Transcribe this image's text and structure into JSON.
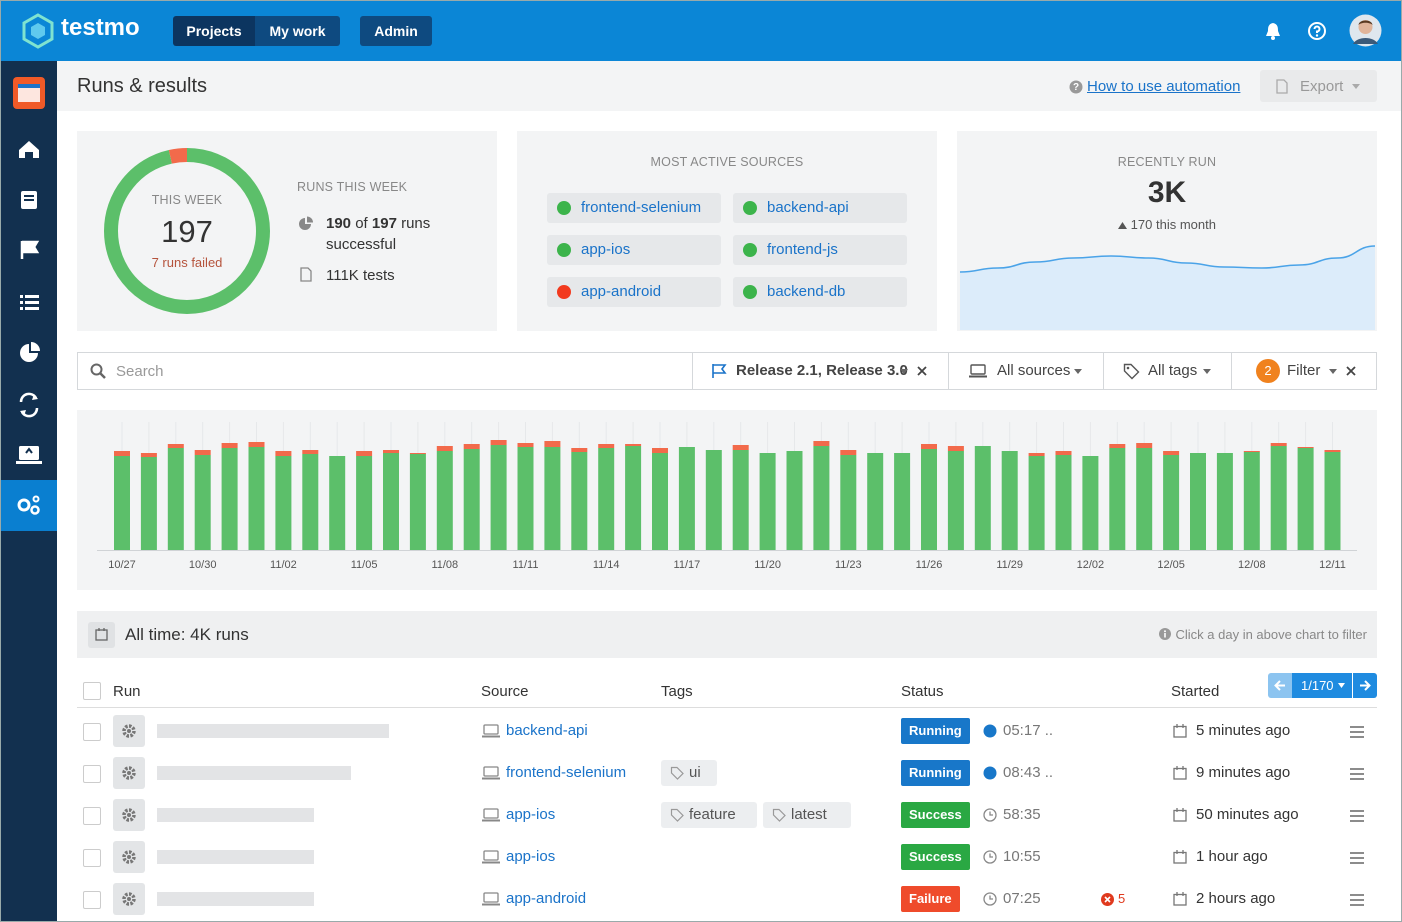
{
  "header": {
    "logo": "testmo",
    "nav": [
      "Projects",
      "My work",
      "Admin"
    ]
  },
  "page": {
    "title": "Runs & results",
    "help_link": "How to use automation",
    "export": "Export"
  },
  "summary": {
    "week_label": "THIS WEEK",
    "total": 197,
    "failed_label": "7 runs failed",
    "heading": "RUNS THIS WEEK",
    "of": "of",
    "runs_successful": "runs successful",
    "tests": "111K tests",
    "segments": [
      {
        "color": "#5cbf6a",
        "value": 190
      },
      {
        "color": "#f26a4b",
        "value": 7
      }
    ]
  },
  "sources": {
    "title": "MOST ACTIVE SOURCES",
    "items": [
      {
        "name": "frontend-selenium",
        "color": "#3cb44b"
      },
      {
        "name": "backend-api",
        "color": "#3cb44b"
      },
      {
        "name": "app-ios",
        "color": "#3cb44b"
      },
      {
        "name": "frontend-js",
        "color": "#3cb44b"
      },
      {
        "name": "app-android",
        "color": "#f23a1e"
      },
      {
        "name": "backend-db",
        "color": "#3cb44b"
      }
    ]
  },
  "recent": {
    "title": "RECENTLY RUN",
    "value": "3K",
    "change": "170 this month"
  },
  "filters": {
    "search": "Search",
    "release": "Release 2.1, Release 3.0",
    "sources": "All sources",
    "tags": "All tags",
    "filter_count": "2",
    "filter": "Filter"
  },
  "chart_data": [
    {
      "type": "bar",
      "stacked": true,
      "categories": [
        "10/27",
        null,
        null,
        "10/30",
        null,
        null,
        "11/02",
        null,
        null,
        "11/05",
        null,
        null,
        "11/08",
        null,
        null,
        "11/11",
        null,
        null,
        "11/14",
        null,
        null,
        "11/17",
        null,
        null,
        "11/20",
        null,
        null,
        "11/23",
        null,
        null,
        "11/26",
        null,
        null,
        "11/29",
        null,
        null,
        "12/02",
        null,
        null,
        "12/05",
        null,
        null,
        "12/08",
        null,
        null,
        "12/11"
      ],
      "series": [
        {
          "color": "#5cbf6a",
          "values": [
            94,
            93,
            102,
            95,
            102,
            103,
            94,
            96,
            94,
            94,
            97,
            96,
            99,
            101,
            105,
            103,
            103,
            98,
            102,
            104,
            97,
            103,
            100,
            100,
            97,
            99,
            104,
            95,
            97,
            97,
            101,
            99,
            104,
            99,
            94,
            95,
            94,
            102,
            102,
            95,
            97,
            97,
            98,
            104,
            102,
            98
          ]
        },
        {
          "color": "#f26a4b",
          "values": [
            5,
            4,
            4,
            5,
            5,
            5,
            5,
            4,
            0,
            5,
            3,
            1,
            5,
            5,
            5,
            4,
            6,
            4,
            4,
            2,
            5,
            0,
            0,
            5,
            0,
            0,
            5,
            5,
            0,
            0,
            5,
            5,
            0,
            0,
            3,
            4,
            0,
            4,
            5,
            4,
            0,
            0,
            1,
            3,
            1,
            2
          ]
        }
      ],
      "ylim": [
        0,
        120
      ]
    },
    {
      "type": "area",
      "color": "#4aa3e8",
      "fill": "#dcecfa",
      "values": [
        58,
        62,
        68,
        72,
        74,
        72,
        67,
        63,
        62,
        65,
        72,
        84
      ],
      "ylim": [
        0,
        100
      ]
    }
  ],
  "table": {
    "all_time": "All time: 4K runs",
    "hint": "Click a day in above chart to filter",
    "pager": "1/170",
    "columns": [
      "Run",
      "Source",
      "Tags",
      "Status",
      "Started"
    ],
    "rows": [
      {
        "source": "backend-api",
        "tags": [],
        "status": "Running",
        "status_color": "#1877c9",
        "live": true,
        "duration": "05:17 ..",
        "started": "5 minutes ago"
      },
      {
        "source": "frontend-selenium",
        "tags": [
          "ui"
        ],
        "status": "Running",
        "status_color": "#1877c9",
        "live": true,
        "duration": "08:43 ..",
        "started": "9 minutes ago"
      },
      {
        "source": "app-ios",
        "tags": [
          "feature",
          "latest"
        ],
        "status": "Success",
        "status_color": "#2aa843",
        "live": false,
        "duration": "58:35",
        "started": "50 minutes ago"
      },
      {
        "source": "app-ios",
        "tags": [],
        "status": "Success",
        "status_color": "#2aa843",
        "live": false,
        "duration": "10:55",
        "started": "1 hour ago"
      },
      {
        "source": "app-android",
        "tags": [],
        "status": "Failure",
        "status_color": "#ef4b2b",
        "live": false,
        "duration": "07:25",
        "errors": "5",
        "started": "2 hours ago"
      }
    ]
  }
}
